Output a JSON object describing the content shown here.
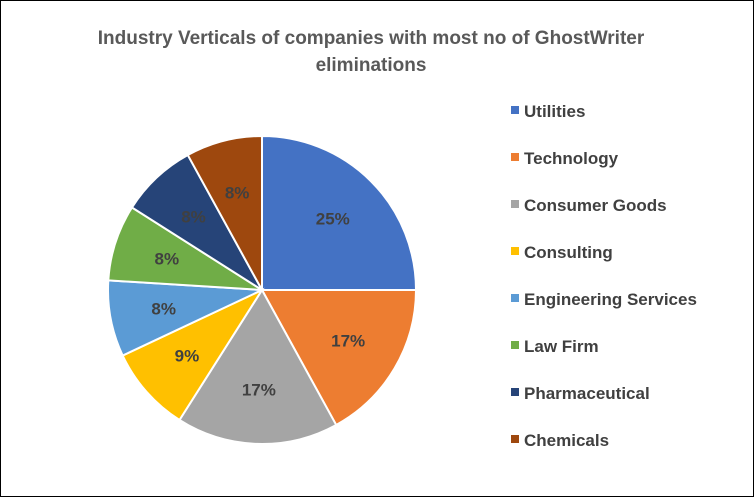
{
  "chart_data": {
    "type": "pie",
    "title": "Industry Verticals of companies with most no of  GhostWriter eliminations",
    "categories": [
      "Utilities",
      "Technology",
      "Consumer Goods",
      "Consulting",
      "Engineering Services",
      "Law Firm",
      "Pharmaceutical",
      "Chemicals"
    ],
    "values": [
      25,
      17,
      17,
      9,
      8,
      8,
      8,
      8
    ],
    "data_labels": [
      "25%",
      "17%",
      "17%",
      "9%",
      "8%",
      "8%",
      "8%",
      "8%"
    ],
    "colors": [
      "#4472C4",
      "#ED7D31",
      "#A5A5A5",
      "#FFC000",
      "#5B9BD5",
      "#70AD47",
      "#264478",
      "#9E480E"
    ],
    "legend_position": "right"
  }
}
